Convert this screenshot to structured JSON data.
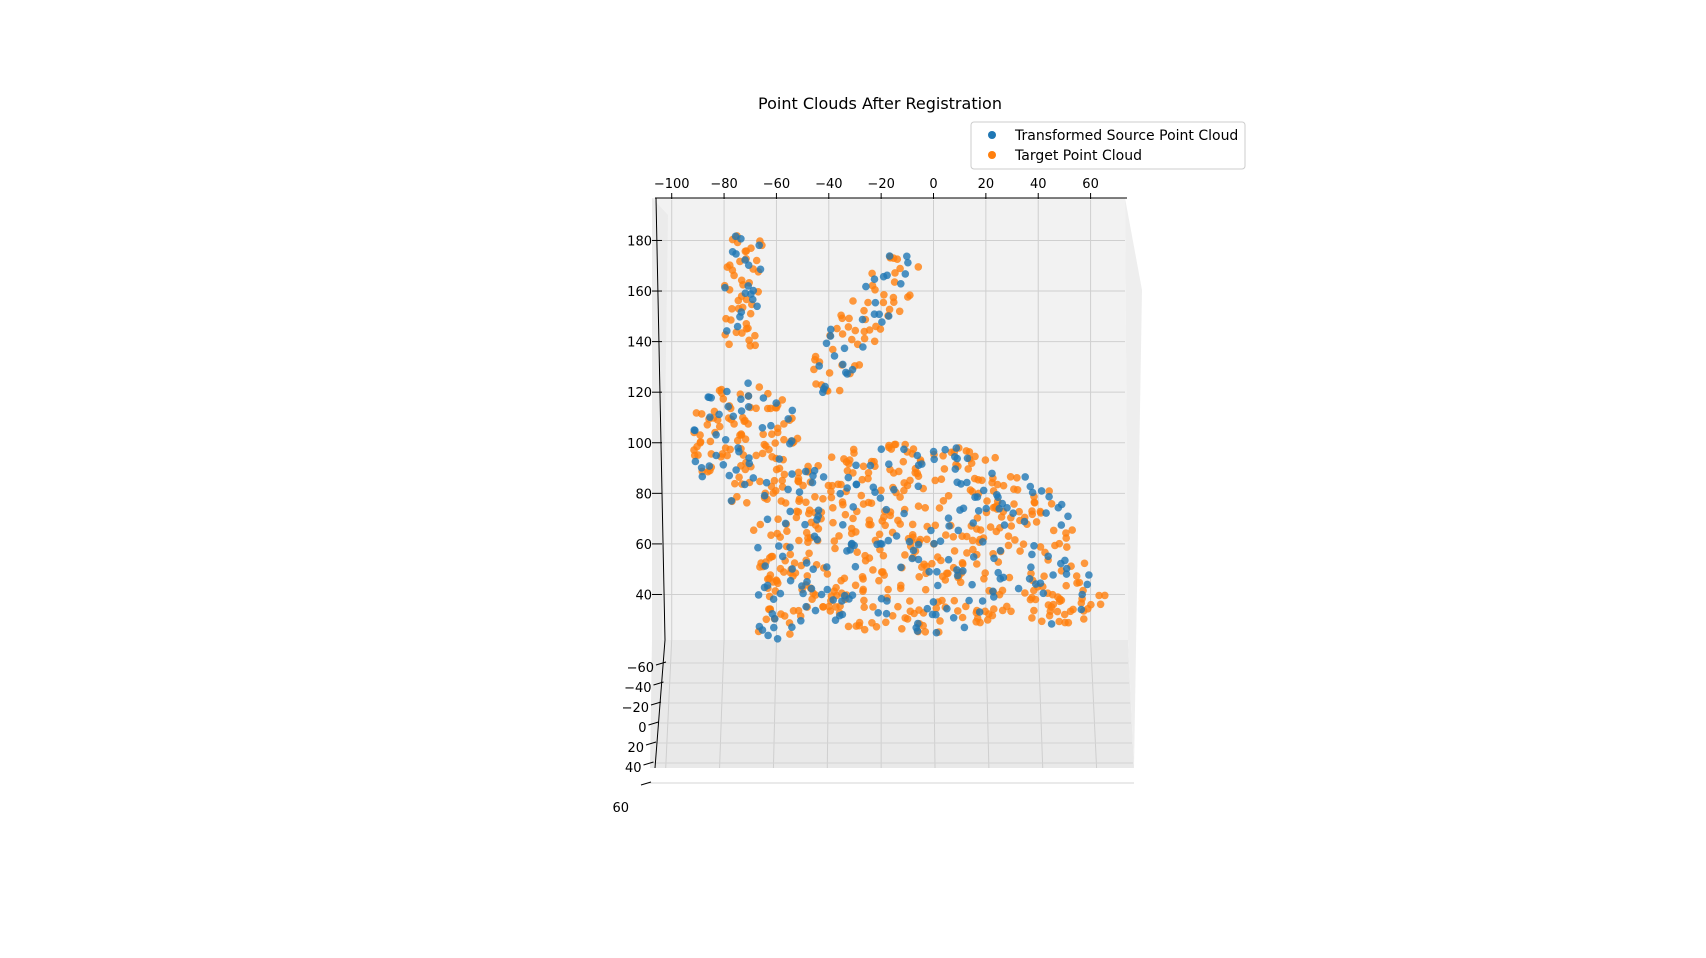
{
  "chart_data": {
    "type": "scatter",
    "projection": "3d",
    "title": "Point Clouds After Registration",
    "xlabel": "",
    "ylabel": "",
    "zlabel": "",
    "x_ticks": [
      "−100",
      "−80",
      "−60",
      "−40",
      "−20",
      "0",
      "20",
      "40",
      "60"
    ],
    "z_ticks": [
      "40",
      "60",
      "80",
      "100",
      "120",
      "140",
      "160",
      "180"
    ],
    "y_ticks": [
      "−60",
      "−40",
      "−20",
      "0",
      "20",
      "40",
      "60"
    ],
    "xlim": [
      -106,
      72
    ],
    "zlim": [
      22,
      196
    ],
    "grid": true,
    "legend_position": "top-right",
    "series": [
      {
        "name": "Transformed Source Point Cloud",
        "color": "#1f77b4",
        "marker": "circle"
      },
      {
        "name": "Target Point Cloud",
        "color": "#ff7f0e",
        "marker": "circle"
      }
    ],
    "shape_note_values": {
      "body_center_x": -5,
      "body_center_z": 62,
      "head_center_x": -73,
      "head_center_z": 100,
      "left_ear_top": [
        -72,
        178
      ],
      "right_ear_top": [
        -14,
        172
      ]
    }
  }
}
